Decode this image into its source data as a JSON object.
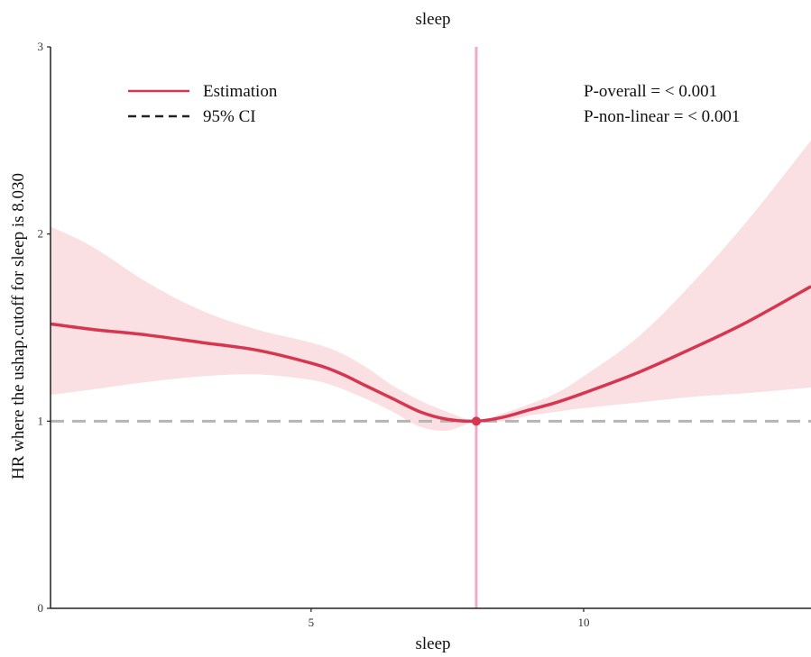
{
  "chart_data": {
    "type": "line",
    "title": "sleep",
    "xlabel": "sleep",
    "ylabel": "HR where the ushap.cutoff for sleep is 8.030",
    "xlim": [
      0.22,
      14.17
    ],
    "ylim": [
      0,
      3
    ],
    "xticks": [
      5,
      10
    ],
    "yticks": [
      0,
      1,
      2,
      3
    ],
    "cutoff_x": 8.03,
    "reference_y": 1,
    "grid": false,
    "legend": {
      "placement": "top-left",
      "entries": [
        {
          "label": "Estimation",
          "style": "solid"
        },
        {
          "label": "95% CI",
          "style": "dashed"
        }
      ]
    },
    "annotations": [
      "P-overall = < 0.001",
      "P-non-linear = < 0.001"
    ],
    "series": [
      {
        "name": "Estimation",
        "x": [
          0.22,
          1,
          2,
          3,
          4,
          5,
          5.5,
          6,
          6.5,
          7,
          7.5,
          8.03,
          8.5,
          9,
          9.5,
          10,
          11,
          12,
          13,
          14.17
        ],
        "y": [
          1.52,
          1.49,
          1.46,
          1.42,
          1.38,
          1.31,
          1.26,
          1.19,
          1.12,
          1.05,
          1.01,
          1.0,
          1.02,
          1.06,
          1.1,
          1.15,
          1.26,
          1.39,
          1.53,
          1.72
        ]
      }
    ],
    "ci_band": {
      "x": [
        0.22,
        1,
        2,
        3,
        4,
        5,
        5.5,
        6,
        6.5,
        7,
        7.5,
        8.03,
        8.5,
        9,
        9.5,
        10,
        11,
        12,
        13,
        14.17
      ],
      "lower": [
        1.14,
        1.17,
        1.21,
        1.24,
        1.25,
        1.22,
        1.18,
        1.12,
        1.05,
        0.97,
        0.95,
        1.0,
        1.0,
        1.03,
        1.05,
        1.07,
        1.1,
        1.13,
        1.15,
        1.18
      ],
      "upper": [
        2.04,
        1.93,
        1.74,
        1.59,
        1.49,
        1.42,
        1.37,
        1.29,
        1.19,
        1.11,
        1.05,
        1.0,
        1.04,
        1.09,
        1.15,
        1.24,
        1.45,
        1.74,
        2.07,
        2.5
      ]
    },
    "colors": {
      "estimation": "#d6364f",
      "ci_fill": "#f9d9de",
      "cutoff_line": "#f0a8cc",
      "reference_line": "#b5b5b5",
      "axis": "#222222"
    }
  }
}
